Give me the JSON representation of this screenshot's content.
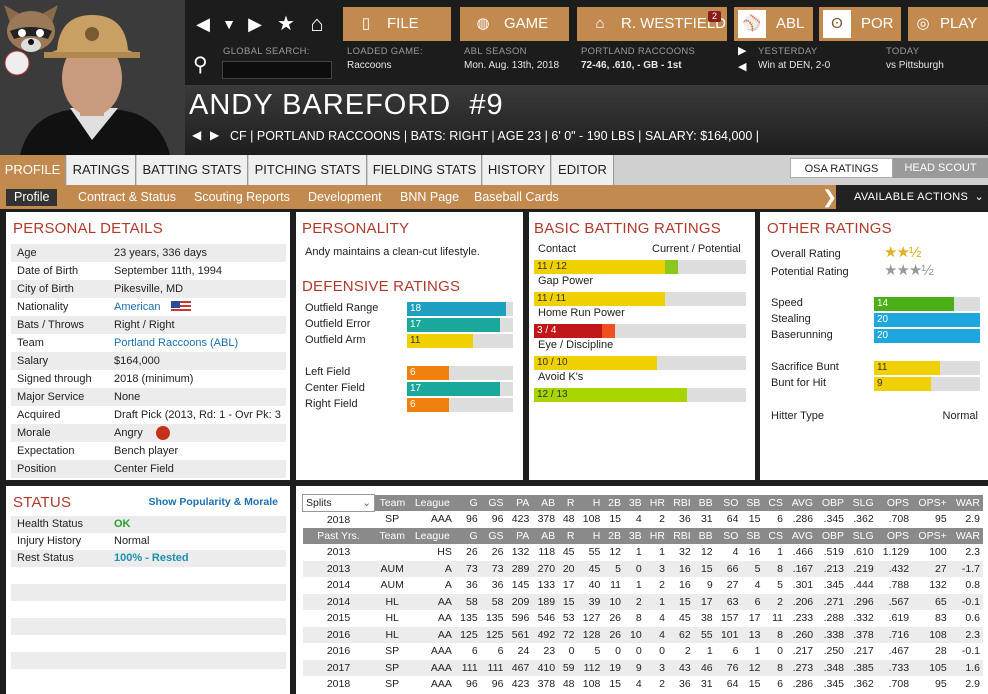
{
  "header": {
    "nav": {
      "back": "◀",
      "down": "▼",
      "forward": "▶",
      "star": "★",
      "home": "⌂"
    },
    "buttons": [
      {
        "icon": "file-icon",
        "label": "FILE"
      },
      {
        "icon": "globe-icon",
        "label": "GAME"
      },
      {
        "icon": "house-icon",
        "label": "R. WESTFIELD",
        "badge": "2"
      },
      {
        "icon": "team-logo-icon",
        "label": "ABL"
      },
      {
        "icon": "raccoon-logo-icon",
        "label": "POR"
      },
      {
        "icon": "baseball-icon",
        "label": "PLAY"
      }
    ],
    "global_search_label": "GLOBAL SEARCH:",
    "loaded_game_label": "LOADED GAME:",
    "loaded_game": "Raccoons",
    "season_label": "ABL SEASON",
    "season_date": "Mon. Aug. 13th, 2018",
    "team_label": "PORTLAND RACCOONS",
    "team_record": "72-46, .610, - GB - 1st",
    "yesterday_label": "YESTERDAY",
    "yesterday": "Win at DEN, 2-0",
    "today_label": "TODAY",
    "today": "vs Pittsburgh"
  },
  "player": {
    "name": "ANDY BAREFORD",
    "number": "#9",
    "info": "CF | PORTLAND RACCOONS  |  BATS: RIGHT  |  AGE 23  |  6' 0\" - 190 LBS  |  SALARY: $164,000  |"
  },
  "tabs": [
    "PROFILE",
    "RATINGS",
    "BATTING STATS",
    "PITCHING STATS",
    "FIELDING STATS",
    "HISTORY",
    "EDITOR"
  ],
  "right_buttons": [
    "OSA RATINGS",
    "HEAD SCOUT"
  ],
  "subtabs": [
    "Profile",
    "Contract & Status",
    "Scouting Reports",
    "Development",
    "BNN Page",
    "Baseball Cards"
  ],
  "available_actions": "AVAILABLE ACTIONS",
  "personal": {
    "title": "PERSONAL DETAILS",
    "rows": [
      {
        "k": "Age",
        "v": "23 years, 336 days"
      },
      {
        "k": "Date of Birth",
        "v": "September 11th, 1994"
      },
      {
        "k": "City of Birth",
        "v": "Pikesville, MD"
      },
      {
        "k": "Nationality",
        "v": "American",
        "link": true,
        "flag": true
      },
      {
        "k": "Bats / Throws",
        "v": "Right / Right"
      },
      {
        "k": "Team",
        "v": "Portland Raccoons (ABL)",
        "link": true
      },
      {
        "k": "Salary",
        "v": "$164,000"
      },
      {
        "k": "Signed through",
        "v": "2018 (minimum)"
      },
      {
        "k": "Major Service",
        "v": "None"
      },
      {
        "k": "Acquired",
        "v": "Draft Pick (2013, Rd: 1 - Ovr Pk: 3"
      },
      {
        "k": "Morale",
        "v": "Angry",
        "face": true
      },
      {
        "k": "Expectation",
        "v": "Bench player"
      },
      {
        "k": "Position",
        "v": "Center Field"
      }
    ]
  },
  "personality": {
    "title": "PERSONALITY",
    "text": "Andy maintains a clean-cut lifestyle."
  },
  "defense": {
    "title": "DEFENSIVE RATINGS",
    "rows": [
      {
        "label": "Outfield Range",
        "value": "18",
        "fill": 0.93,
        "color": "#1e9fbf"
      },
      {
        "label": "Outfield Error",
        "value": "17",
        "fill": 0.88,
        "color": "#1aa89a"
      },
      {
        "label": "Outfield Arm",
        "value": "11",
        "fill": 0.62,
        "color": "#f0d000"
      },
      {
        "label": "Left Field",
        "value": "6",
        "fill": 0.4,
        "color": "#f08010"
      },
      {
        "label": "Center Field",
        "value": "17",
        "fill": 0.88,
        "color": "#1aa89a"
      },
      {
        "label": "Right Field",
        "value": "6",
        "fill": 0.4,
        "color": "#f08010"
      }
    ]
  },
  "batting": {
    "title": "BASIC BATTING RATINGS",
    "current_potential": "Current / Potential",
    "rows": [
      {
        "label": "Contact",
        "value": "11 / 12",
        "fill": 0.62,
        "pot": 0.68,
        "color": "#f0d000"
      },
      {
        "label": "Gap Power",
        "value": "11 / 11",
        "fill": 0.62,
        "pot": 0.62,
        "color": "#f0d000"
      },
      {
        "label": "Home Run Power",
        "value": "3 / 4",
        "fill": 0.32,
        "pot": 0.38,
        "color": "#c01818"
      },
      {
        "label": "Eye / Discipline",
        "value": "10 / 10",
        "fill": 0.58,
        "pot": 0.58,
        "color": "#f0d000"
      },
      {
        "label": "Avoid K's",
        "value": "12 / 13",
        "fill": 0.72,
        "pot": 0.72,
        "color": "#a8d400"
      }
    ]
  },
  "other": {
    "title": "OTHER RATINGS",
    "overall_label": "Overall Rating",
    "overall_stars": "★★½",
    "potential_label": "Potential Rating",
    "potential_stars": "★★★½",
    "rows": [
      {
        "label": "Speed",
        "value": "14",
        "fill": 0.75,
        "color": "#4caf1a"
      },
      {
        "label": "Stealing",
        "value": "20",
        "fill": 1.0,
        "color": "#1ea7dd"
      },
      {
        "label": "Baserunning",
        "value": "20",
        "fill": 1.0,
        "color": "#1ea7dd"
      },
      {
        "label": "Sacrifice Bunt",
        "value": "11",
        "fill": 0.62,
        "color": "#f0d000"
      },
      {
        "label": "Bunt for Hit",
        "value": "9",
        "fill": 0.54,
        "color": "#f0d000"
      }
    ],
    "hitter_type_label": "Hitter Type",
    "hitter_type": "Normal"
  },
  "status": {
    "title": "STATUS",
    "link": "Show Popularity & Morale",
    "rows": [
      {
        "k": "Health Status",
        "v": "OK",
        "color": "#2aa02a"
      },
      {
        "k": "Injury History",
        "v": "Normal",
        "color": "#222"
      },
      {
        "k": "Rest Status",
        "v": "100% - Rested",
        "color": "#1b8fb0"
      }
    ]
  },
  "stats": {
    "splits_label": "Splits",
    "headers": [
      "Team",
      "League",
      "G",
      "GS",
      "PA",
      "AB",
      "R",
      "H",
      "2B",
      "3B",
      "HR",
      "RBI",
      "BB",
      "SO",
      "SB",
      "CS",
      "AVG",
      "OBP",
      "SLG",
      "OPS",
      "OPS+",
      "WAR"
    ],
    "current": [
      "2018",
      "SP",
      "AAA",
      "96",
      "96",
      "423",
      "378",
      "48",
      "108",
      "15",
      "4",
      "2",
      "36",
      "31",
      "64",
      "15",
      "6",
      ".286",
      ".345",
      ".362",
      ".708",
      "95",
      "2.9"
    ],
    "past_label": "Past Yrs.",
    "rows": [
      [
        "2013",
        "",
        "HS",
        "26",
        "26",
        "132",
        "118",
        "45",
        "55",
        "12",
        "1",
        "1",
        "32",
        "12",
        "4",
        "16",
        "1",
        ".466",
        ".519",
        ".610",
        "1.129",
        "100",
        "2.3"
      ],
      [
        "2013",
        "AUM",
        "A",
        "73",
        "73",
        "289",
        "270",
        "20",
        "45",
        "5",
        "0",
        "3",
        "16",
        "15",
        "66",
        "5",
        "8",
        ".167",
        ".213",
        ".219",
        ".432",
        "27",
        "-1.7"
      ],
      [
        "2014",
        "AUM",
        "A",
        "36",
        "36",
        "145",
        "133",
        "17",
        "40",
        "11",
        "1",
        "2",
        "16",
        "9",
        "27",
        "4",
        "5",
        ".301",
        ".345",
        ".444",
        ".788",
        "132",
        "0.8"
      ],
      [
        "2014",
        "HL",
        "AA",
        "58",
        "58",
        "209",
        "189",
        "15",
        "39",
        "10",
        "2",
        "1",
        "15",
        "17",
        "63",
        "6",
        "2",
        ".206",
        ".271",
        ".296",
        ".567",
        "65",
        "-0.1"
      ],
      [
        "2015",
        "HL",
        "AA",
        "135",
        "135",
        "596",
        "546",
        "53",
        "127",
        "26",
        "8",
        "4",
        "45",
        "38",
        "157",
        "17",
        "11",
        ".233",
        ".288",
        ".332",
        ".619",
        "83",
        "0.6"
      ],
      [
        "2016",
        "HL",
        "AA",
        "125",
        "125",
        "561",
        "492",
        "72",
        "128",
        "26",
        "10",
        "4",
        "62",
        "55",
        "101",
        "13",
        "8",
        ".260",
        ".338",
        ".378",
        ".716",
        "108",
        "2.3"
      ],
      [
        "2016",
        "SP",
        "AAA",
        "6",
        "6",
        "24",
        "23",
        "0",
        "5",
        "0",
        "0",
        "0",
        "2",
        "1",
        "6",
        "1",
        "0",
        ".217",
        ".250",
        ".217",
        ".467",
        "28",
        "-0.1"
      ],
      [
        "2017",
        "SP",
        "AAA",
        "111",
        "111",
        "467",
        "410",
        "59",
        "112",
        "19",
        "9",
        "3",
        "43",
        "46",
        "76",
        "12",
        "8",
        ".273",
        ".348",
        ".385",
        ".733",
        "105",
        "1.6"
      ],
      [
        "2018",
        "SP",
        "AAA",
        "96",
        "96",
        "423",
        "378",
        "48",
        "108",
        "15",
        "4",
        "2",
        "36",
        "31",
        "64",
        "15",
        "6",
        ".286",
        ".345",
        ".362",
        ".708",
        "95",
        "2.9"
      ]
    ]
  }
}
